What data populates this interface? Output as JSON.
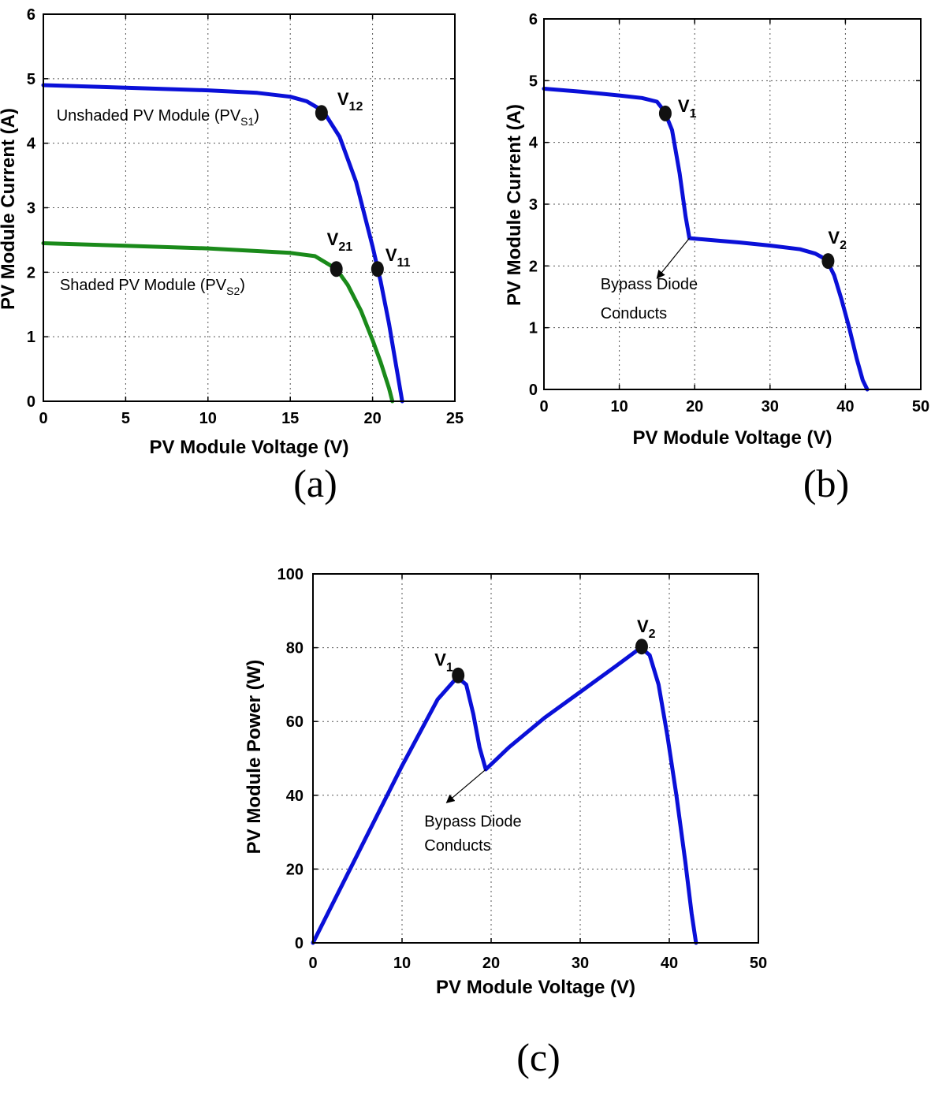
{
  "chart_data": [
    {
      "id": "a",
      "type": "line",
      "panel_label": "(a)",
      "xlabel": "PV Module Voltage (V)",
      "ylabel": "PV Module Current (A)",
      "xlim": [
        0,
        25
      ],
      "ylim": [
        0,
        6
      ],
      "xticks": [
        0,
        5,
        10,
        15,
        20,
        25
      ],
      "yticks": [
        0,
        1,
        2,
        3,
        4,
        5,
        6
      ],
      "grid": true,
      "series": [
        {
          "color": "#0a10d8",
          "x": [
            0,
            5,
            10,
            13,
            15,
            16,
            17,
            18,
            19,
            20,
            20.5,
            21,
            21.3,
            21.6,
            21.8
          ],
          "y": [
            4.9,
            4.86,
            4.82,
            4.78,
            4.72,
            4.65,
            4.5,
            4.1,
            3.4,
            2.4,
            1.85,
            1.2,
            0.75,
            0.3,
            0
          ]
        },
        {
          "color": "#1a8a1a",
          "x": [
            0,
            5,
            10,
            15,
            16.5,
            17.8,
            18.5,
            19.3,
            20,
            20.5,
            21,
            21.2
          ],
          "y": [
            2.45,
            2.41,
            2.37,
            2.3,
            2.25,
            2.05,
            1.8,
            1.4,
            0.95,
            0.6,
            0.2,
            0
          ]
        }
      ],
      "points": [
        {
          "x": 16.9,
          "y": 4.47,
          "label": "V",
          "sub": "12",
          "label_dx": 10,
          "label_dy": -10
        },
        {
          "x": 20.3,
          "y": 2.05,
          "label": "V",
          "sub": "11",
          "label_dx": 0,
          "label_dy": -10
        },
        {
          "x": 17.8,
          "y": 2.05,
          "label": "V",
          "sub": "21",
          "label_dx": -22,
          "label_dy": -30
        }
      ],
      "annotations": [
        {
          "text": "Unshaded PV Module (PV",
          "sub": "S1",
          "after": ")",
          "x": 0.8,
          "y": 4.35
        },
        {
          "text": "Shaded PV Module (PV",
          "sub": "S2",
          "after": ")",
          "x": 1.0,
          "y": 1.72
        }
      ]
    },
    {
      "id": "b",
      "type": "line",
      "panel_label": "(b)",
      "xlabel": "PV Module Voltage (V)",
      "ylabel": "PV Module Current (A)",
      "xlim": [
        0,
        50
      ],
      "ylim": [
        0,
        6
      ],
      "xticks": [
        0,
        10,
        20,
        30,
        40,
        50
      ],
      "yticks": [
        0,
        1,
        2,
        3,
        4,
        5,
        6
      ],
      "grid": true,
      "series": [
        {
          "color": "#0a10d8",
          "x": [
            0,
            5,
            10,
            13,
            15,
            16,
            17,
            18,
            18.8,
            19.3,
            22,
            26,
            30,
            34,
            36,
            37.5,
            38.5,
            39.5,
            40.5,
            41.5,
            42.3,
            42.9
          ],
          "y": [
            4.87,
            4.82,
            4.76,
            4.72,
            4.66,
            4.5,
            4.2,
            3.5,
            2.8,
            2.45,
            2.42,
            2.38,
            2.33,
            2.27,
            2.2,
            2.1,
            1.85,
            1.45,
            1.0,
            0.5,
            0.15,
            0
          ]
        }
      ],
      "points": [
        {
          "x": 16.1,
          "y": 4.47,
          "label": "V",
          "sub": "1",
          "label_dx": 6,
          "label_dy": -2
        },
        {
          "x": 37.7,
          "y": 2.08,
          "label": "V",
          "sub": "2",
          "label_dx": -10,
          "label_dy": -22
        }
      ],
      "arrow": {
        "from": [
          19.3,
          2.45
        ],
        "to": [
          15.0,
          1.8
        ]
      },
      "annotations": [
        {
          "text": "Bypass Diode",
          "x": 7.5,
          "y": 1.62
        },
        {
          "text": "Conducts",
          "x": 7.5,
          "y": 1.15
        }
      ]
    },
    {
      "id": "c",
      "type": "line",
      "panel_label": "(c)",
      "xlabel": "PV Module Voltage (V)",
      "ylabel": "PV Module Power (W)",
      "xlim": [
        0,
        50
      ],
      "ylim": [
        0,
        100
      ],
      "xticks": [
        0,
        10,
        20,
        30,
        40,
        50
      ],
      "yticks": [
        0,
        20,
        40,
        60,
        80,
        100
      ],
      "grid": true,
      "series": [
        {
          "color": "#0a10d8",
          "x": [
            0,
            5,
            10,
            14,
            16.2,
            17.2,
            18,
            18.7,
            19.4,
            22,
            26,
            30,
            34,
            36.8,
            37.8,
            38.8,
            39.8,
            40.8,
            41.8,
            42.5,
            43
          ],
          "y": [
            0,
            24,
            48,
            66,
            72,
            70,
            62,
            53,
            47,
            53,
            61,
            68,
            75,
            80,
            78,
            70,
            56,
            40,
            22,
            8,
            0
          ]
        }
      ],
      "points": [
        {
          "x": 16.3,
          "y": 72.5,
          "label": "V",
          "sub": "1",
          "label_dx": -40,
          "label_dy": -12
        },
        {
          "x": 36.9,
          "y": 80.3,
          "label": "V",
          "sub": "2",
          "label_dx": -16,
          "label_dy": -18
        }
      ],
      "arrow": {
        "from": [
          19.4,
          47
        ],
        "to": [
          15.0,
          38
        ]
      },
      "annotations": [
        {
          "text": "Bypass Diode",
          "x": 12.5,
          "y": 31.5
        },
        {
          "text": "Conducts",
          "x": 12.5,
          "y": 25.0
        }
      ]
    }
  ]
}
